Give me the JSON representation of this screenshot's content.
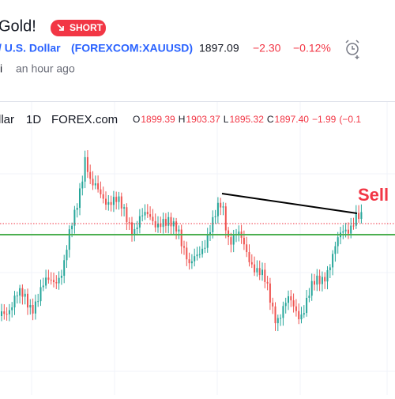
{
  "header": {
    "title": "Gold!",
    "badge": "SHORT"
  },
  "symbol": {
    "name": "/ U.S. Dollar",
    "ticker": "(FOREXCOM:XAUUSD)",
    "price": "1897.09",
    "change": "−2.30",
    "change_pct": "−0.12%"
  },
  "author": {
    "name": "i",
    "time": "an hour ago"
  },
  "chart": {
    "legend": {
      "symbol": "llar",
      "interval": "1D",
      "source": "FOREX.com",
      "ohlc": [
        {
          "key": "O",
          "value": "1899.39"
        },
        {
          "key": "H",
          "value": "1903.37"
        },
        {
          "key": "L",
          "value": "1895.32"
        },
        {
          "key": "C",
          "value": "1897.40"
        }
      ],
      "change": "−1.99",
      "change_pct": "(−0.1"
    },
    "annotation": "Sell"
  }
}
